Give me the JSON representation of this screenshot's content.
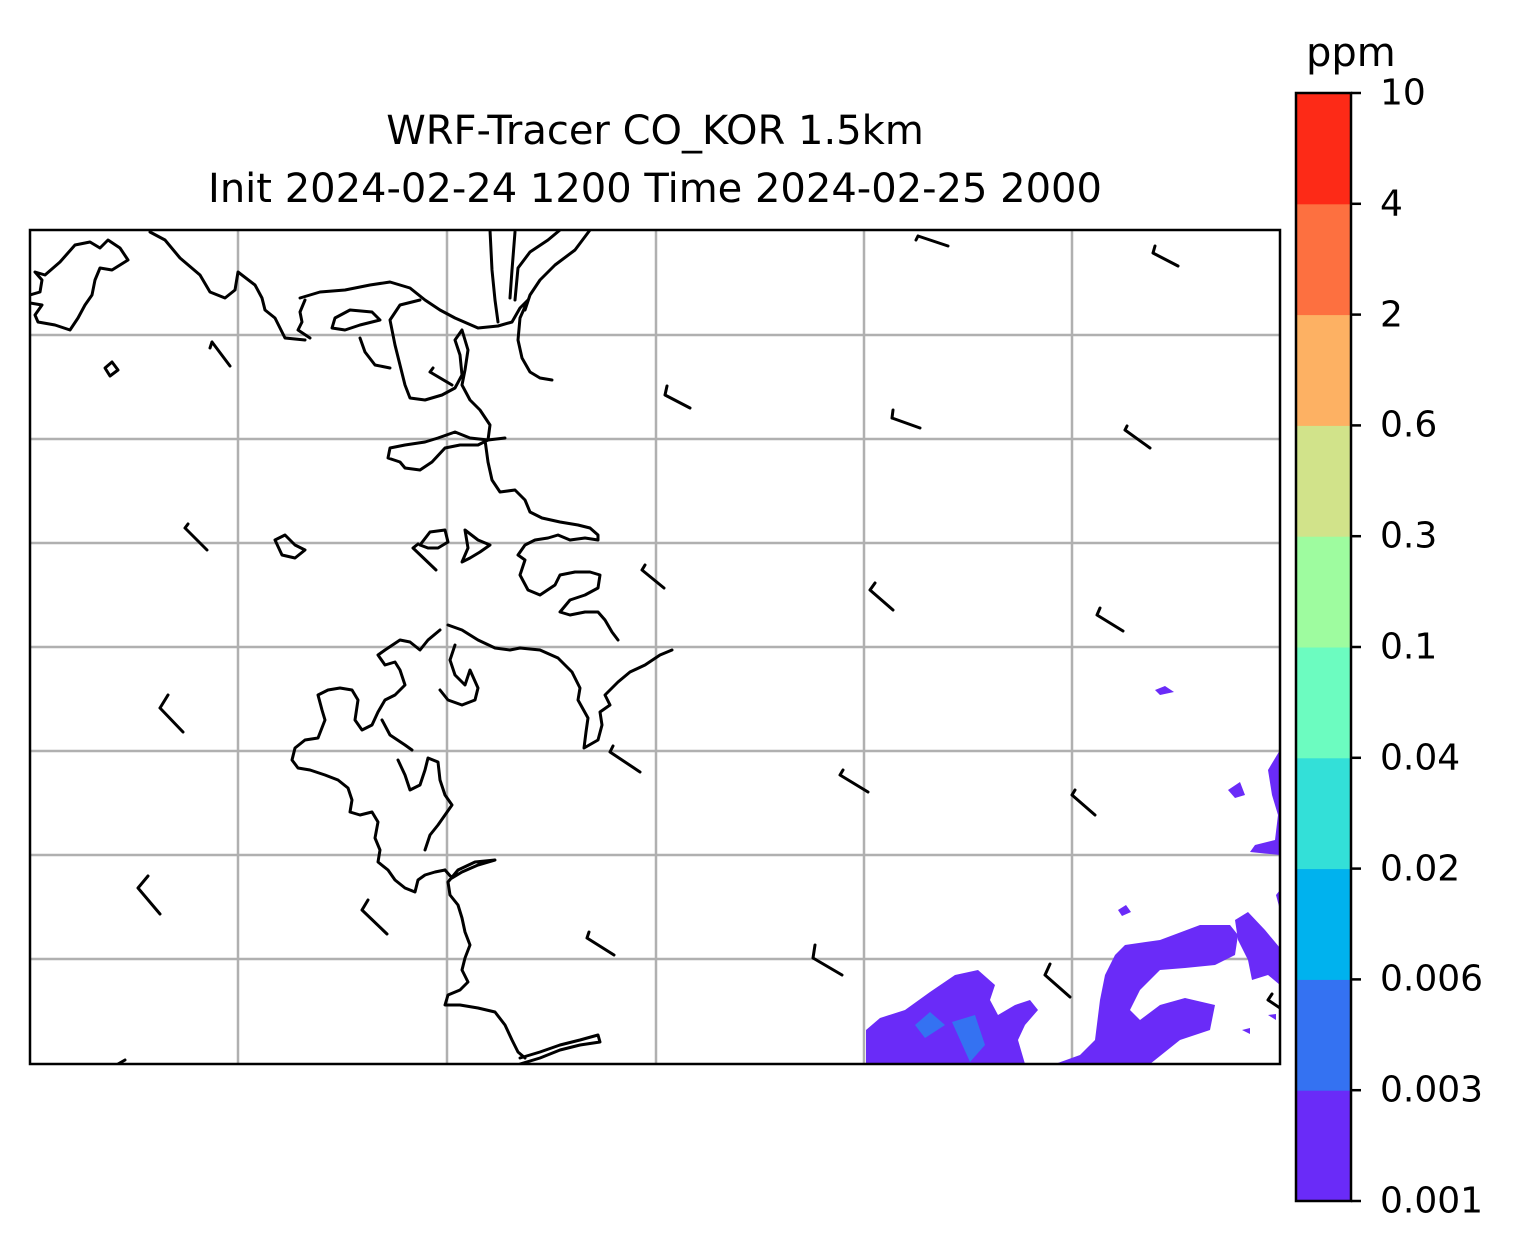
{
  "title": {
    "line1": "WRF-Tracer CO_KOR 1.5km",
    "line2": "Init 2024-02-24 1200 Time 2024-02-25 2000"
  },
  "colorbar": {
    "unit": "ppm",
    "levels": [
      "0.001",
      "0.003",
      "0.006",
      "0.02",
      "0.04",
      "0.1",
      "0.3",
      "0.6",
      "2",
      "4",
      "10"
    ],
    "colors": [
      "#6a2bf8",
      "#3472f2",
      "#00b2ee",
      "#33e0d8",
      "#6cfcc0",
      "#9efc9f",
      "#d1e38a",
      "#fdb163",
      "#fd7040",
      "#fd2a17"
    ]
  },
  "map": {
    "gridlines": true,
    "gridline_color": "#b0b0b0",
    "coastline_color": "#000000",
    "tracer_fill": {
      "level_band": "0.001-0.003",
      "color": "#6a2bf8"
    },
    "tracer_fill_inner": {
      "level_band": "0.003-0.006",
      "color": "#3472f2"
    },
    "wind_barb_icon": "wind-barb"
  }
}
